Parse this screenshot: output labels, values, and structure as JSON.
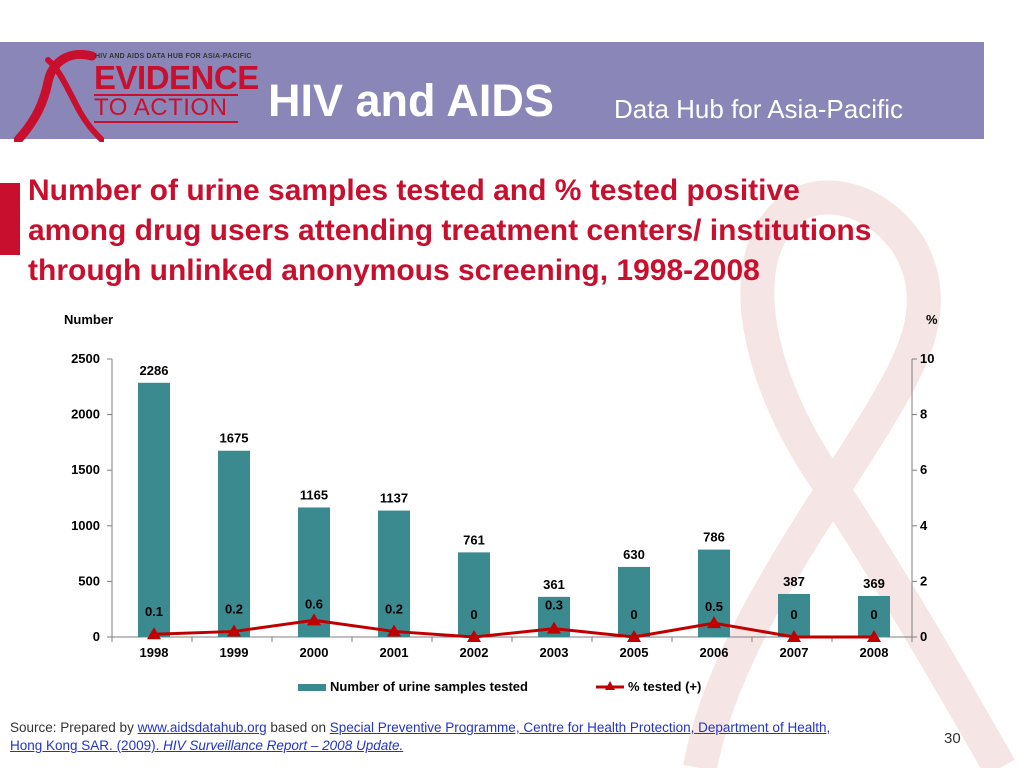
{
  "header": {
    "logo_small": "HIV AND AIDS DATA HUB FOR ASIA-PACIFIC",
    "logo_line1": "EVIDENCE",
    "logo_line2": "TO ACTION",
    "title_main": "HIV and AIDS",
    "title_sub": "Data Hub for Asia-Pacific"
  },
  "slide_title": {
    "line1": "Number of urine samples tested and % tested positive",
    "line2": "among  drug users attending treatment centers/ institutions",
    "line3": "through unlinked anonymous screening, 1998-2008"
  },
  "colors": {
    "header_band": "#8a87b8",
    "bar": "#3a8a8f",
    "line": "#c00000",
    "accent_red": "#c8102e"
  },
  "chart_data": {
    "type": "bar",
    "title": "",
    "ylabel": "Number",
    "y2label": "%",
    "ylim": [
      0,
      2500
    ],
    "y2lim": [
      0,
      10
    ],
    "yticks": [
      0,
      500,
      1000,
      1500,
      2000,
      2500
    ],
    "y2ticks": [
      0,
      2,
      4,
      6,
      8,
      10
    ],
    "grid": false,
    "legend_position": "bottom",
    "categories": [
      "1998",
      "1999",
      "2000",
      "2001",
      "2002",
      "2003",
      "2005",
      "2006",
      "2007",
      "2008"
    ],
    "series": [
      {
        "name": "Number of urine samples tested",
        "type": "bar",
        "axis": "left",
        "values": [
          2286,
          1675,
          1165,
          1137,
          761,
          361,
          630,
          786,
          387,
          369
        ]
      },
      {
        "name": "% tested (+)",
        "type": "line",
        "axis": "right",
        "marker": "triangle",
        "values": [
          0.1,
          0.2,
          0.6,
          0.2,
          0,
          0.3,
          0,
          0.5,
          0,
          0
        ]
      }
    ]
  },
  "source": {
    "prefix": "Source: Prepared by ",
    "link1": "www.aidsdatahub.org",
    "middle": "  based on ",
    "link2": "Special Preventive Programme, Centre for Health Protection, Department of Health,",
    "link3_plain": "Hong Kong SAR. (2009). ",
    "link3_italic": "HIV Surveillance Report – 2008 Update."
  },
  "page_number": "30"
}
